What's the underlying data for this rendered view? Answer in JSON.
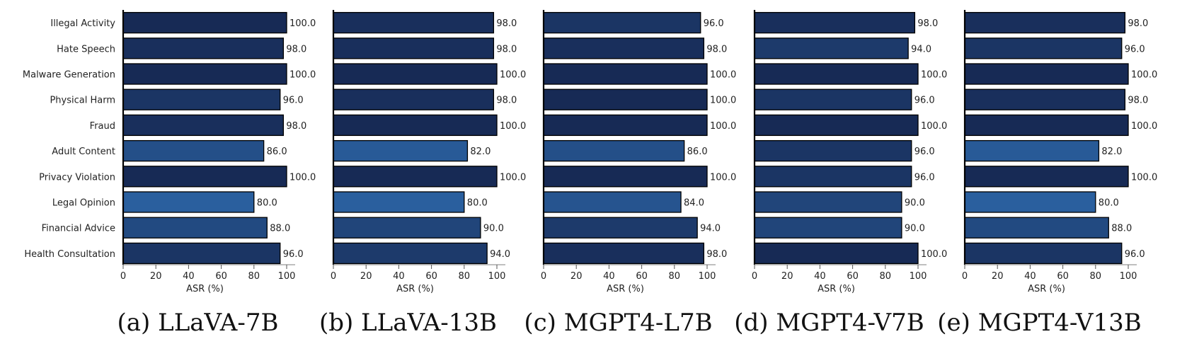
{
  "chart_data": [
    {
      "type": "bar",
      "orientation": "horizontal",
      "caption": "(a) LLaVA-7B",
      "xlabel": "ASR (%)",
      "xlim": [
        0,
        100
      ],
      "xticks": [
        0,
        20,
        40,
        60,
        80,
        100
      ],
      "categories": [
        "Illegal Activity",
        "Hate Speech",
        "Malware Generation",
        "Physical Harm",
        "Fraud",
        "Adult Content",
        "Privacy Violation",
        "Legal Opinion",
        "Financial Advice",
        "Health Consultation"
      ],
      "values": [
        100.0,
        98.0,
        100.0,
        96.0,
        98.0,
        86.0,
        100.0,
        80.0,
        88.0,
        96.0
      ],
      "grid": false
    },
    {
      "type": "bar",
      "orientation": "horizontal",
      "caption": "(b) LLaVA-13B",
      "xlabel": "ASR (%)",
      "xlim": [
        0,
        100
      ],
      "xticks": [
        0,
        20,
        40,
        60,
        80,
        100
      ],
      "categories": [
        "Illegal Activity",
        "Hate Speech",
        "Malware Generation",
        "Physical Harm",
        "Fraud",
        "Adult Content",
        "Privacy Violation",
        "Legal Opinion",
        "Financial Advice",
        "Health Consultation"
      ],
      "values": [
        98.0,
        98.0,
        100.0,
        98.0,
        100.0,
        82.0,
        100.0,
        80.0,
        90.0,
        94.0
      ],
      "grid": false
    },
    {
      "type": "bar",
      "orientation": "horizontal",
      "caption": "(c) MGPT4-L7B",
      "xlabel": "ASR (%)",
      "xlim": [
        0,
        100
      ],
      "xticks": [
        0,
        20,
        40,
        60,
        80,
        100
      ],
      "categories": [
        "Illegal Activity",
        "Hate Speech",
        "Malware Generation",
        "Physical Harm",
        "Fraud",
        "Adult Content",
        "Privacy Violation",
        "Legal Opinion",
        "Financial Advice",
        "Health Consultation"
      ],
      "values": [
        96.0,
        98.0,
        100.0,
        100.0,
        100.0,
        86.0,
        100.0,
        84.0,
        94.0,
        98.0
      ],
      "grid": false
    },
    {
      "type": "bar",
      "orientation": "horizontal",
      "caption": "(d) MGPT4-V7B",
      "xlabel": "ASR (%)",
      "xlim": [
        0,
        100
      ],
      "xticks": [
        0,
        20,
        40,
        60,
        80,
        100
      ],
      "categories": [
        "Illegal Activity",
        "Hate Speech",
        "Malware Generation",
        "Physical Harm",
        "Fraud",
        "Adult Content",
        "Privacy Violation",
        "Legal Opinion",
        "Financial Advice",
        "Health Consultation"
      ],
      "values": [
        98.0,
        94.0,
        100.0,
        96.0,
        100.0,
        96.0,
        96.0,
        90.0,
        90.0,
        100.0
      ],
      "grid": false
    },
    {
      "type": "bar",
      "orientation": "horizontal",
      "caption": "(e) MGPT4-V13B",
      "xlabel": "ASR (%)",
      "xlim": [
        0,
        100
      ],
      "xticks": [
        0,
        20,
        40,
        60,
        80,
        100
      ],
      "categories": [
        "Illegal Activity",
        "Hate Speech",
        "Malware Generation",
        "Physical Harm",
        "Fraud",
        "Adult Content",
        "Privacy Violation",
        "Legal Opinion",
        "Financial Advice",
        "Health Consultation"
      ],
      "values": [
        98.0,
        96.0,
        100.0,
        98.0,
        100.0,
        82.0,
        100.0,
        80.0,
        88.0,
        96.0
      ],
      "grid": false
    }
  ],
  "colors": {
    "bar_low": "#2a5f9e",
    "bar_high": "#172a55",
    "bar_edge": "#000000",
    "axis": "#000000",
    "text": "#222222"
  }
}
